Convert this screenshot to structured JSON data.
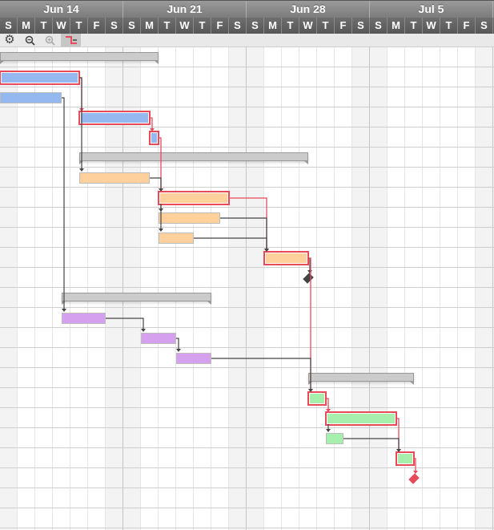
{
  "header": {
    "weeks": [
      "Jun 14",
      "Jun 21",
      "Jun 28",
      "Jul 5"
    ],
    "days": [
      "S",
      "M",
      "T",
      "W",
      "T",
      "F",
      "S",
      "S",
      "M",
      "T",
      "W",
      "T",
      "F",
      "S",
      "S",
      "M",
      "T",
      "W",
      "T",
      "F",
      "S",
      "S",
      "M",
      "T",
      "W",
      "T",
      "F",
      "S"
    ]
  },
  "toolbar": {
    "buttons": [
      {
        "icon": "gear-icon",
        "enabled": true,
        "active": false
      },
      {
        "icon": "zoom-out-icon",
        "enabled": true,
        "active": false
      },
      {
        "icon": "zoom-in-icon",
        "enabled": false,
        "active": false
      },
      {
        "icon": "critical-path-icon",
        "enabled": true,
        "active": true
      }
    ]
  },
  "colors": {
    "critical": "#e84a5a",
    "link": "#444444",
    "blue": "#95b8f0",
    "orange": "#fed19c",
    "purple": "#d5a1ef",
    "green": "#a7efad",
    "summary": "#cbcbcb",
    "weekend": "#f3f3f3"
  },
  "chart_data": {
    "type": "gantt",
    "x_range": [
      "Jun 14",
      "Jul 11"
    ],
    "grid": true,
    "row_count": 24,
    "tasks": [
      {
        "id": 0,
        "kind": "summary",
        "start": "Jun 14 00:00",
        "end": "Jun 23 00:00"
      },
      {
        "id": 1,
        "kind": "task",
        "start": "Jun 14 00:00",
        "end": "Jun 18 12:00",
        "color": "blue",
        "critical": true
      },
      {
        "id": 2,
        "kind": "task",
        "start": "Jun 14 00:00",
        "end": "Jun 17 12:00",
        "color": "blue",
        "critical": false
      },
      {
        "id": 3,
        "kind": "task",
        "start": "Jun 18 12:00",
        "end": "Jun 22 12:00",
        "color": "blue",
        "critical": true
      },
      {
        "id": 4,
        "kind": "task",
        "start": "Jun 22 12:00",
        "end": "Jun 23 00:00",
        "color": "blue",
        "critical": true
      },
      {
        "id": 5,
        "kind": "summary",
        "start": "Jun 18 12:00",
        "end": "Jul 1 12:00"
      },
      {
        "id": 6,
        "kind": "task",
        "start": "Jun 18 12:00",
        "end": "Jun 22 12:00",
        "color": "orange",
        "critical": false
      },
      {
        "id": 7,
        "kind": "task",
        "start": "Jun 23 00:00",
        "end": "Jun 27 00:00",
        "color": "orange",
        "critical": true
      },
      {
        "id": 8,
        "kind": "task",
        "start": "Jun 23 00:00",
        "end": "Jun 26 12:00",
        "color": "orange",
        "critical": false
      },
      {
        "id": 9,
        "kind": "task",
        "start": "Jun 23 00:00",
        "end": "Jun 25 00:00",
        "color": "orange",
        "critical": false
      },
      {
        "id": 10,
        "kind": "task",
        "start": "Jun 29 00:00",
        "end": "Jul 1 12:00",
        "color": "orange",
        "critical": true
      },
      {
        "id": 11,
        "kind": "milestone",
        "start": "Jul 1 12:00",
        "critical": false
      },
      {
        "id": 12,
        "kind": "summary",
        "start": "Jun 17 12:00",
        "end": "Jun 26 00:00"
      },
      {
        "id": 13,
        "kind": "task",
        "start": "Jun 17 12:00",
        "end": "Jun 20 00:00",
        "color": "purple",
        "critical": false
      },
      {
        "id": 14,
        "kind": "task",
        "start": "Jun 22 00:00",
        "end": "Jun 24 00:00",
        "color": "purple",
        "critical": false
      },
      {
        "id": 15,
        "kind": "task",
        "start": "Jun 24 00:00",
        "end": "Jun 26 00:00",
        "color": "purple",
        "critical": false
      },
      {
        "id": 16,
        "kind": "summary",
        "start": "Jul 1 12:00",
        "end": "Jul 7 12:00"
      },
      {
        "id": 17,
        "kind": "task",
        "start": "Jul 1 12:00",
        "end": "Jul 2 12:00",
        "color": "green",
        "critical": true
      },
      {
        "id": 18,
        "kind": "task",
        "start": "Jul 2 12:00",
        "end": "Jul 6 12:00",
        "color": "green",
        "critical": true
      },
      {
        "id": 19,
        "kind": "task",
        "start": "Jul 2 12:00",
        "end": "Jul 3 12:00",
        "color": "green",
        "critical": false
      },
      {
        "id": 20,
        "kind": "task",
        "start": "Jul 6 12:00",
        "end": "Jul 7 12:00",
        "color": "green",
        "critical": true
      },
      {
        "id": 21,
        "kind": "milestone",
        "start": "Jul 7 12:00",
        "critical": true
      }
    ],
    "links": [
      {
        "from": 1,
        "to": 3,
        "type": "FS",
        "critical": true
      },
      {
        "from": 1,
        "to": 6,
        "type": "FS",
        "critical": false
      },
      {
        "from": 2,
        "to": 13,
        "type": "FS",
        "critical": false
      },
      {
        "from": 3,
        "to": 4,
        "type": "FS",
        "critical": true
      },
      {
        "from": 4,
        "to": 7,
        "type": "FS",
        "critical": true
      },
      {
        "from": 6,
        "to": 7,
        "type": "FS",
        "critical": false
      },
      {
        "from": 7,
        "to": 8,
        "type": "SS",
        "critical": false
      },
      {
        "from": 7,
        "to": 9,
        "type": "SS",
        "critical": false
      },
      {
        "from": 7,
        "to": 10,
        "type": "FS",
        "critical": true
      },
      {
        "from": 8,
        "to": 10,
        "type": "FS",
        "critical": false
      },
      {
        "from": 9,
        "to": 10,
        "type": "FS",
        "critical": false
      },
      {
        "from": 10,
        "to": 11,
        "type": "FS",
        "critical": false
      },
      {
        "from": 10,
        "to": 17,
        "type": "FS",
        "critical": true
      },
      {
        "from": 13,
        "to": 14,
        "type": "FS",
        "critical": false
      },
      {
        "from": 14,
        "to": 15,
        "type": "FS",
        "critical": false
      },
      {
        "from": 15,
        "to": 17,
        "type": "FS",
        "critical": false
      },
      {
        "from": 17,
        "to": 18,
        "type": "FS",
        "critical": true
      },
      {
        "from": 18,
        "to": 19,
        "type": "SS",
        "critical": false
      },
      {
        "from": 18,
        "to": 20,
        "type": "FS",
        "critical": true
      },
      {
        "from": 19,
        "to": 20,
        "type": "FS",
        "critical": false
      },
      {
        "from": 20,
        "to": 21,
        "type": "FS",
        "critical": true
      }
    ]
  }
}
